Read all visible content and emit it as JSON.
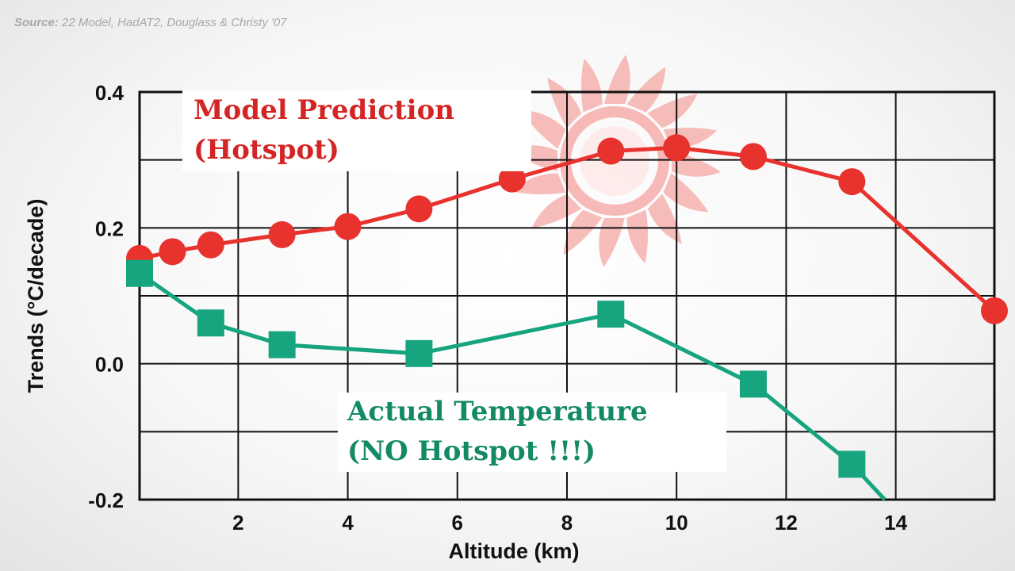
{
  "source": {
    "prefix": "Source:",
    "text": " 22 Model, HadAT2, Douglass & Christy '07"
  },
  "annotations": {
    "model_line1": "Model Prediction",
    "model_line2": "(Hotspot)",
    "actual_line1": "Actual Temperature",
    "actual_line2": "(NO Hotspot !!!)"
  },
  "colors": {
    "model": "#e8322e",
    "actual": "#16a57e",
    "model_text": "#d42525",
    "actual_text": "#138a66",
    "sun": "#f4a3a0"
  },
  "decoration": "sun-icon",
  "chart_data": {
    "type": "line",
    "xlabel": "Altitude (km)",
    "ylabel": "Trends (°C/decade)",
    "xlim": [
      0.2,
      15.8
    ],
    "ylim": [
      -0.2,
      0.4
    ],
    "xticks": [
      2,
      4,
      6,
      8,
      10,
      12,
      14
    ],
    "yticks": [
      -0.2,
      0.0,
      0.2,
      0.4
    ],
    "ytick_labels": [
      "-0.2",
      "0.0",
      "0.2",
      "0.4"
    ],
    "grid": true,
    "series": [
      {
        "key": "model",
        "marker": "circle",
        "x": [
          0.2,
          0.8,
          1.5,
          2.8,
          4.0,
          5.3,
          7.0,
          8.8,
          10.0,
          11.4,
          13.2,
          15.8
        ],
        "y": [
          0.155,
          0.165,
          0.175,
          0.19,
          0.202,
          0.228,
          0.272,
          0.313,
          0.318,
          0.305,
          0.268,
          0.078
        ]
      },
      {
        "key": "actual",
        "marker": "square",
        "x": [
          0.2,
          1.5,
          2.8,
          5.3,
          8.8,
          11.4,
          13.2,
          13.8
        ],
        "y": [
          0.133,
          0.06,
          0.028,
          0.015,
          0.073,
          -0.03,
          -0.148,
          -0.2
        ]
      }
    ]
  }
}
